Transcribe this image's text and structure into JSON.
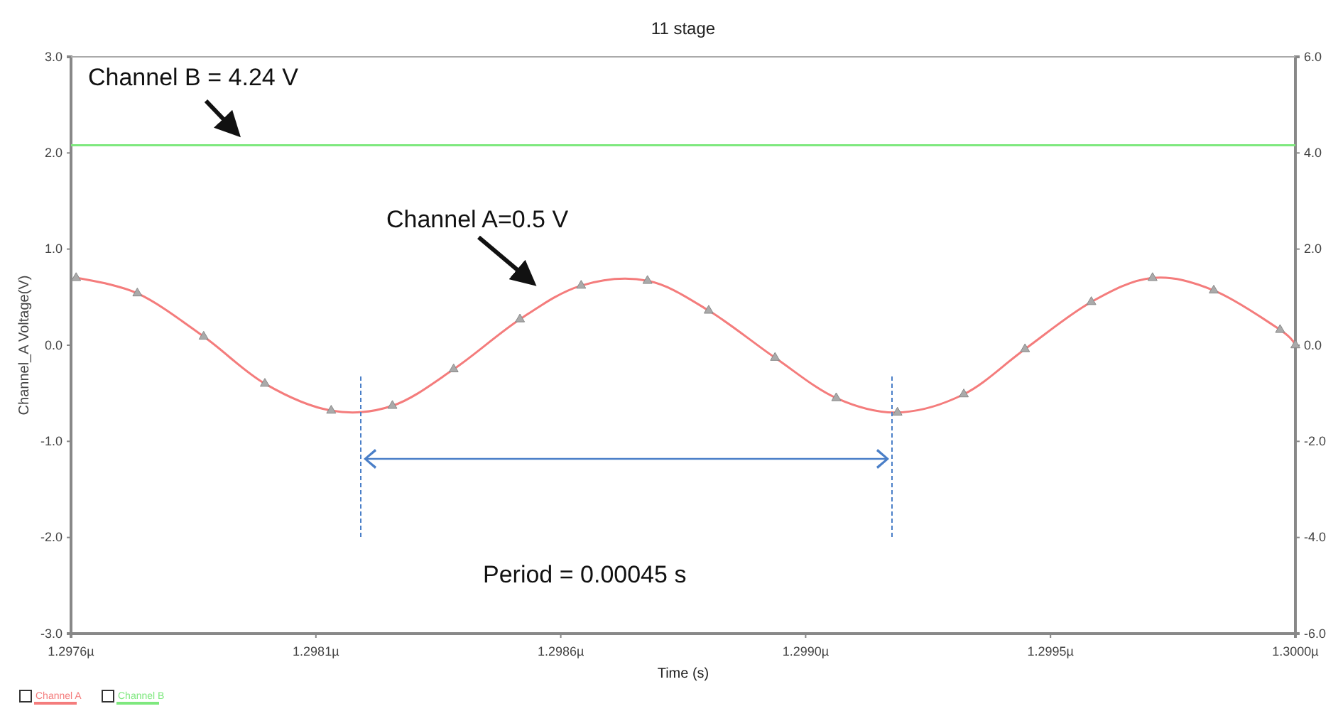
{
  "chart_data": {
    "type": "line",
    "title": "11 stage",
    "xlabel": "Time (s)",
    "ylabel": "Channel_A Voltage(V)",
    "xlim": [
      1.2976,
      1.3
    ],
    "xticks": [
      {
        "value": 1.2976,
        "label": "1.2976µ"
      },
      {
        "value": 1.29808,
        "label": "1.2981µ"
      },
      {
        "value": 1.29856,
        "label": "1.2986µ"
      },
      {
        "value": 1.29904,
        "label": "1.2990µ"
      },
      {
        "value": 1.29952,
        "label": "1.2995µ"
      },
      {
        "value": 1.3,
        "label": "1.3000µ"
      }
    ],
    "ylim": [
      -3,
      3
    ],
    "yticks": [
      {
        "value": 3,
        "label": "3.0"
      },
      {
        "value": 2,
        "label": "2.0"
      },
      {
        "value": 1,
        "label": "1.0"
      },
      {
        "value": 0,
        "label": "0.0"
      },
      {
        "value": -1,
        "label": "-1.0"
      },
      {
        "value": -2,
        "label": "-2.0"
      },
      {
        "value": -3,
        "label": "-3.0"
      }
    ],
    "y2lim": [
      -6,
      6
    ],
    "y2ticks": [
      {
        "value": 6,
        "label": "6.0"
      },
      {
        "value": 4,
        "label": "4.0"
      },
      {
        "value": 2,
        "label": "2.0"
      },
      {
        "value": 0,
        "label": "0.0"
      },
      {
        "value": -2,
        "label": "-2.0"
      },
      {
        "value": -4,
        "label": "-4.0"
      },
      {
        "value": -6,
        "label": "-6.0"
      }
    ],
    "marker": "triangle",
    "legend": "bottom left",
    "grid": false,
    "series": [
      {
        "name": "Channel A",
        "color": "#f47c7c",
        "x": [
          1.29761,
          1.29773,
          1.29786,
          1.29798,
          1.29811,
          1.29823,
          1.29835,
          1.29848,
          1.2986,
          1.29873,
          1.29885,
          1.29898,
          1.2991,
          1.29922,
          1.29935,
          1.29947,
          1.2996,
          1.29972,
          1.29984,
          1.29997,
          1.3
        ],
        "values": [
          0.7,
          0.54,
          0.09,
          -0.4,
          -0.68,
          -0.63,
          -0.25,
          0.27,
          0.62,
          0.67,
          0.36,
          -0.13,
          -0.55,
          -0.7,
          -0.51,
          -0.04,
          0.45,
          0.7,
          0.57,
          0.16,
          0.0
        ]
      },
      {
        "name": "Channel B",
        "color": "#7ee87e",
        "axis": "y2",
        "marker": "none",
        "x": [
          1.2976,
          1.2988,
          1.3
        ],
        "values": [
          4.16,
          4.16,
          4.16
        ]
      }
    ],
    "annotations": [
      "Channel B = 4.24 V",
      "Channel A=0.5 V",
      "Period = 0.00045 s"
    ]
  }
}
